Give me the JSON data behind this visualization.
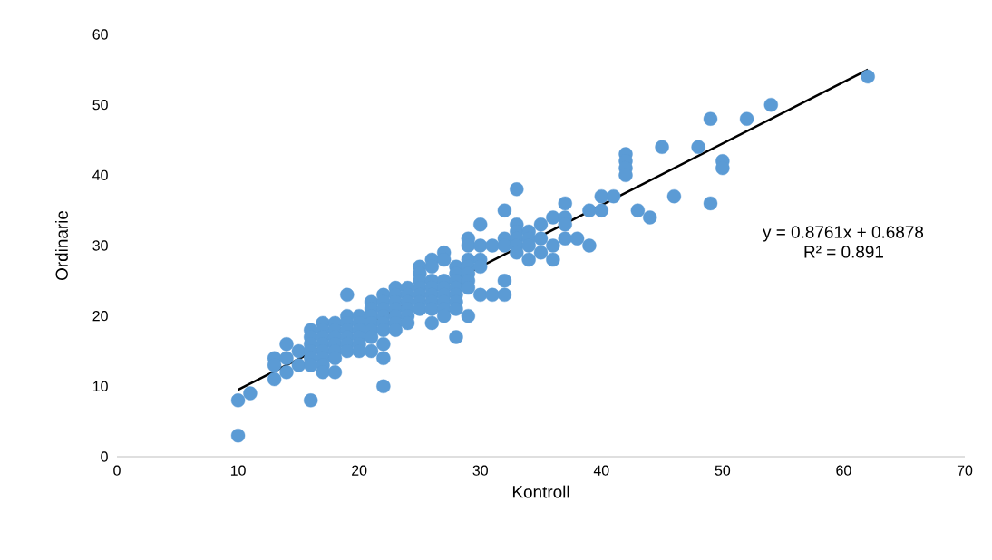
{
  "chart_data": {
    "type": "scatter",
    "xlabel": "Kontroll",
    "ylabel": "Ordinarie",
    "xlim": [
      0,
      70
    ],
    "ylim": [
      0,
      60
    ],
    "xticks": [
      0,
      10,
      20,
      30,
      40,
      50,
      60,
      70
    ],
    "yticks": [
      0,
      10,
      20,
      30,
      40,
      50,
      60
    ],
    "grid": false,
    "annotations": [
      "y = 0.8761x + 0.6878",
      "R² = 0.891"
    ],
    "series": [
      {
        "color": "#5b9bd5",
        "marker": "circle",
        "x": [
          10,
          10,
          11,
          13,
          13,
          13,
          14,
          14,
          14,
          15,
          15,
          16,
          16,
          16,
          16,
          16,
          16,
          16,
          17,
          17,
          17,
          17,
          17,
          17,
          17,
          17,
          18,
          18,
          18,
          18,
          18,
          18,
          18,
          19,
          19,
          19,
          19,
          19,
          19,
          19,
          20,
          20,
          20,
          20,
          20,
          20,
          21,
          21,
          21,
          21,
          21,
          21,
          21,
          22,
          22,
          22,
          22,
          22,
          22,
          22,
          22,
          22,
          23,
          23,
          23,
          23,
          23,
          23,
          23,
          24,
          24,
          24,
          24,
          24,
          24,
          25,
          25,
          25,
          25,
          25,
          25,
          25,
          26,
          26,
          26,
          26,
          26,
          26,
          26,
          26,
          27,
          27,
          27,
          27,
          27,
          27,
          27,
          27,
          28,
          28,
          28,
          28,
          28,
          28,
          28,
          28,
          29,
          29,
          29,
          29,
          29,
          29,
          29,
          29,
          30,
          30,
          30,
          30,
          30,
          31,
          31,
          32,
          32,
          32,
          32,
          32,
          33,
          33,
          33,
          33,
          33,
          33,
          34,
          34,
          34,
          34,
          35,
          35,
          35,
          36,
          36,
          36,
          37,
          37,
          37,
          37,
          38,
          39,
          39,
          40,
          40,
          41,
          42,
          42,
          42,
          42,
          43,
          44,
          45,
          46,
          48,
          49,
          49,
          50,
          50,
          52,
          54,
          62
        ],
        "values": [
          8,
          3,
          9,
          14,
          13,
          11,
          16,
          14,
          12,
          15,
          13,
          18,
          17,
          16,
          15,
          14,
          13,
          8,
          19,
          18,
          17,
          16,
          15,
          14,
          13,
          12,
          19,
          18,
          17,
          16,
          15,
          14,
          12,
          23,
          20,
          19,
          18,
          17,
          16,
          15,
          20,
          19,
          18,
          17,
          16,
          15,
          22,
          21,
          20,
          19,
          18,
          17,
          15,
          23,
          22,
          21,
          20,
          19,
          18,
          16,
          14,
          10,
          24,
          23,
          22,
          21,
          20,
          19,
          18,
          24,
          23,
          22,
          21,
          20,
          19,
          27,
          26,
          25,
          24,
          23,
          22,
          21,
          28,
          27,
          25,
          24,
          23,
          22,
          21,
          19,
          29,
          28,
          25,
          24,
          23,
          22,
          21,
          20,
          27,
          26,
          25,
          24,
          23,
          22,
          21,
          17,
          31,
          30,
          28,
          27,
          26,
          25,
          24,
          20,
          33,
          30,
          28,
          27,
          23,
          30,
          23,
          35,
          31,
          30,
          25,
          23,
          38,
          33,
          32,
          31,
          30,
          29,
          32,
          31,
          30,
          28,
          33,
          31,
          29,
          34,
          30,
          28,
          36,
          34,
          33,
          31,
          31,
          35,
          30,
          37,
          35,
          37,
          43,
          42,
          41,
          40,
          35,
          34,
          44,
          37,
          44,
          48,
          36,
          42,
          41,
          48,
          50,
          54
        ]
      },
      {
        "type": "line",
        "color": "#000000",
        "marker": "none",
        "x": [
          10,
          62
        ],
        "values": [
          9.5,
          55
        ]
      }
    ]
  }
}
